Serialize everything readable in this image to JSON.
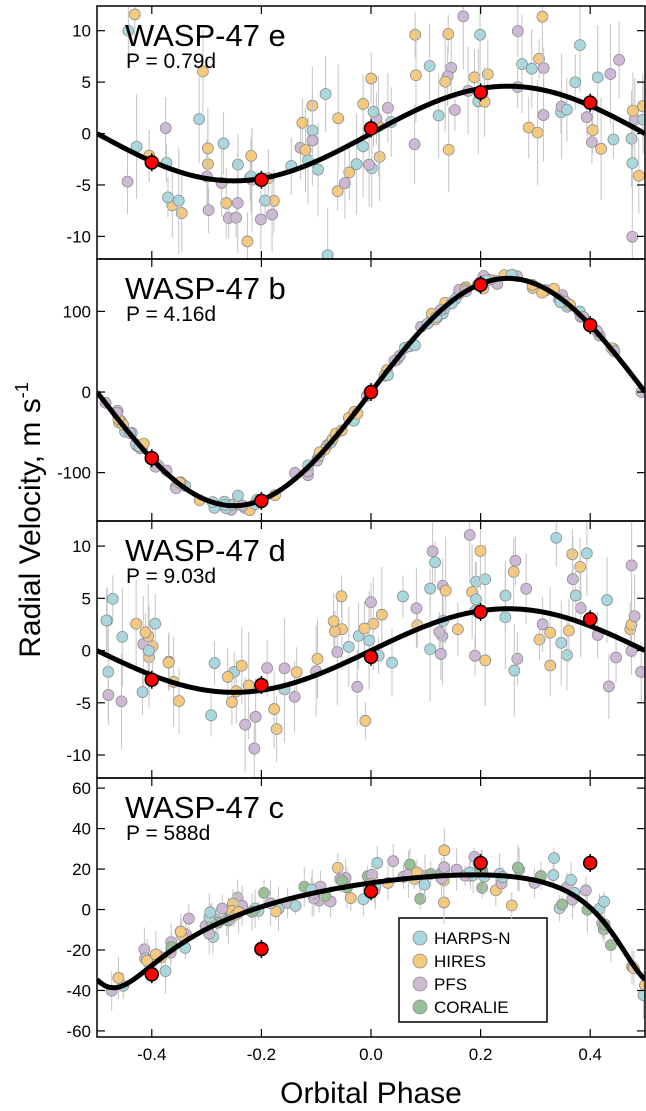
{
  "chart_data": {
    "type": "scatter",
    "xlabel": "Orbital Phase",
    "ylabel": "Radial Velocity, m s",
    "ylabel_superscript": "-1",
    "xlim": [
      -0.5,
      0.5
    ],
    "x_ticks": [
      -0.4,
      -0.2,
      0.0,
      0.2,
      0.4
    ],
    "x_tick_labels": [
      "-0.4",
      "-0.2",
      "0.0",
      "0.2",
      "0.4"
    ],
    "legend": {
      "position": "bottom-right of bottom panel",
      "entries": [
        {
          "label": "HARPS-N",
          "color": "#a8d8de"
        },
        {
          "label": "HIRES",
          "color": "#f5c97e"
        },
        {
          "label": "PFS",
          "color": "#cdb8d6"
        },
        {
          "label": "CORALIE",
          "color": "#98bf96"
        }
      ]
    },
    "colors": {
      "model": "#000000",
      "binned": "#ff0000",
      "errorbar": "#c4c4c4",
      "marker_edge": "#8f8f8f"
    },
    "panels": [
      {
        "title": "WASP-47 e",
        "period": "P = 0.79d",
        "ylim": [
          -12.2,
          12.4
        ],
        "y_ticks": [
          -10,
          -5,
          0,
          5,
          10
        ],
        "y_tick_labels": [
          "-10",
          "-5",
          "0",
          "5",
          "10"
        ],
        "model": {
          "kind": "sine",
          "amplitude": 4.6,
          "offset": 0
        },
        "binned": [
          {
            "x": -0.4,
            "y": -2.8
          },
          {
            "x": -0.2,
            "y": -4.5
          },
          {
            "x": 0.0,
            "y": 0.5
          },
          {
            "x": 0.2,
            "y": 4.0
          },
          {
            "x": 0.4,
            "y": 3.0
          }
        ],
        "scatter": {
          "seed": 11,
          "n": 110,
          "sigma": 3.8,
          "err": 3.5
        }
      },
      {
        "title": "WASP-47 b",
        "period": "P = 4.16d",
        "ylim": [
          -160,
          165
        ],
        "y_ticks": [
          -100,
          0,
          100
        ],
        "y_tick_labels": [
          "-100",
          "0",
          "100"
        ],
        "model": {
          "kind": "sine",
          "amplitude": 141,
          "offset": 0
        },
        "binned": [
          {
            "x": -0.4,
            "y": -82
          },
          {
            "x": -0.2,
            "y": -135
          },
          {
            "x": 0.0,
            "y": 0
          },
          {
            "x": 0.2,
            "y": 133
          },
          {
            "x": 0.4,
            "y": 83
          }
        ],
        "scatter": {
          "seed": 23,
          "n": 120,
          "sigma": 4,
          "err": 3
        }
      },
      {
        "title": "WASP-47 d",
        "period": "P = 9.03d",
        "ylim": [
          -12.2,
          12.4
        ],
        "y_ticks": [
          -10,
          -5,
          0,
          5,
          10
        ],
        "y_tick_labels": [
          "-10",
          "-5",
          "0",
          "5",
          "10"
        ],
        "model": {
          "kind": "sine",
          "amplitude": 4.0,
          "offset": 0
        },
        "binned": [
          {
            "x": -0.4,
            "y": -2.8
          },
          {
            "x": -0.2,
            "y": -3.3
          },
          {
            "x": 0.0,
            "y": -0.6
          },
          {
            "x": 0.2,
            "y": 3.7
          },
          {
            "x": 0.4,
            "y": 3.0
          }
        ],
        "scatter": {
          "seed": 37,
          "n": 110,
          "sigma": 3.6,
          "err": 3.5
        }
      },
      {
        "title": "WASP-47 c",
        "period": "P = 588d",
        "ylim": [
          -63,
          65
        ],
        "y_ticks": [
          -60,
          -40,
          -20,
          0,
          20,
          40,
          60
        ],
        "y_tick_labels": [
          "-60",
          "-40",
          "-20",
          "0",
          "20",
          "40",
          "60"
        ],
        "model": {
          "kind": "eccentric",
          "amplitude": 31,
          "offset": 0
        },
        "binned": [
          {
            "x": -0.4,
            "y": -32
          },
          {
            "x": -0.2,
            "y": -19.5
          },
          {
            "x": 0.0,
            "y": 9
          },
          {
            "x": 0.2,
            "y": 23
          },
          {
            "x": 0.4,
            "y": 23
          }
        ],
        "scatter": {
          "seed": 53,
          "n": 130,
          "sigma": 5,
          "err": 8
        }
      }
    ]
  }
}
